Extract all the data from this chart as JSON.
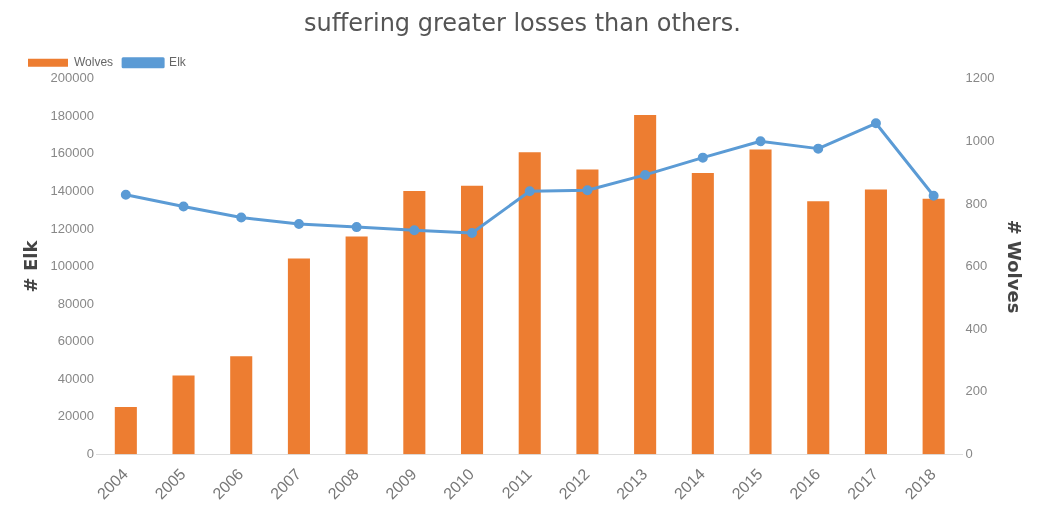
{
  "chart_data": {
    "type": "bar",
    "title": "suffering greater losses than others.",
    "ylabel": "# Elk",
    "y2label": "# Wolves",
    "categories": [
      "2004",
      "2005",
      "2006",
      "2007",
      "2008",
      "2009",
      "2010",
      "2011",
      "2012",
      "2013",
      "2014",
      "2015",
      "2016",
      "2017",
      "2018"
    ],
    "series": [
      {
        "name": "Wolves",
        "axis": "y2",
        "color": "#ed7d31",
        "values": [
          151,
          252,
          313,
          626,
          696,
          841,
          858,
          965,
          910,
          1084,
          899,
          974,
          809,
          846,
          817
        ]
      },
      {
        "name": "Elk",
        "type": "line",
        "axis": "y",
        "color": "#5b9bd5",
        "marker": "circle",
        "values": [
          138200,
          132000,
          126100,
          122700,
          121000,
          119300,
          117900,
          140100,
          140600,
          148800,
          158000,
          166700,
          162800,
          176300,
          137700
        ]
      }
    ],
    "ylim": [
      0,
      200000
    ],
    "yticks": [
      0,
      20000,
      40000,
      60000,
      80000,
      100000,
      120000,
      140000,
      160000,
      180000,
      200000
    ],
    "y2lim": [
      0,
      1200
    ],
    "y2ticks": [
      0,
      200,
      400,
      600,
      800,
      1000,
      1200
    ],
    "legend": "top left",
    "grid": false
  }
}
